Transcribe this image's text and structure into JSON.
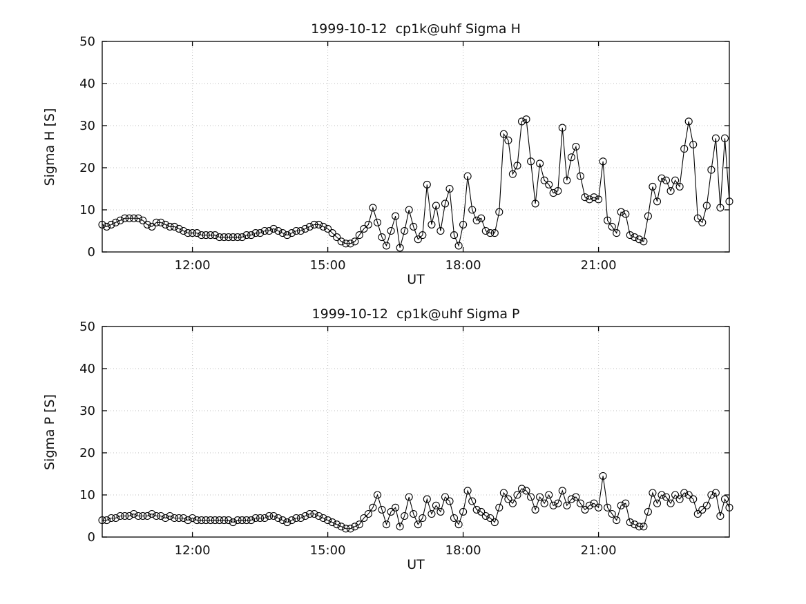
{
  "figure": {
    "background": "#ffffff"
  },
  "chart_data": [
    {
      "type": "line",
      "marker": "circle",
      "title": "1999-10-12  cp1k@uhf Sigma H",
      "xlabel": "UT",
      "ylabel": "Sigma H [S]",
      "xlim": [
        10.0,
        23.9
      ],
      "ylim": [
        0,
        50
      ],
      "xticks": {
        "values": [
          12,
          15,
          18,
          21
        ],
        "labels": [
          "12:00",
          "15:00",
          "18:00",
          "21:00"
        ]
      },
      "yticks": [
        0,
        10,
        20,
        30,
        40,
        50
      ],
      "line_color": "#000000",
      "grid_color": "#bfbfbf",
      "grid": true,
      "x_hours": {
        "start": 10.0,
        "step": 0.1,
        "count": 140
      },
      "values": [
        6.5,
        6,
        6.5,
        7,
        7.5,
        8,
        8,
        8,
        8,
        7.5,
        6.5,
        6,
        7,
        7,
        6.5,
        6,
        6,
        5.5,
        5,
        4.5,
        4.5,
        4.5,
        4,
        4,
        4,
        4,
        3.5,
        3.5,
        3.5,
        3.5,
        3.5,
        3.5,
        4,
        4,
        4.5,
        4.5,
        5,
        5,
        5.5,
        5,
        4.5,
        4,
        4.5,
        5,
        5,
        5.5,
        6,
        6.5,
        6.5,
        6,
        5.5,
        4.5,
        3.5,
        2.5,
        2,
        2,
        2.5,
        4,
        5.5,
        6.5,
        10.5,
        7,
        3.5,
        1.5,
        5,
        8.5,
        1,
        5,
        10,
        6,
        3,
        4,
        16,
        6.5,
        11,
        5,
        11.5,
        15,
        4,
        1.5,
        6.5,
        18,
        10,
        7.5,
        8,
        5,
        4.5,
        4.5,
        9.5,
        28,
        26.5,
        18.5,
        20.5,
        31,
        31.5,
        21.5,
        11.5,
        21,
        17,
        16,
        14,
        14.5,
        29.5,
        17,
        22.5,
        25,
        18,
        13,
        12.5,
        13,
        12.5,
        21.5,
        7.5,
        6,
        4.5,
        9.5,
        9,
        4,
        3.5,
        3,
        2.5,
        8.5,
        15.5,
        12,
        17.5,
        17,
        14.5,
        17,
        15.5,
        24.5,
        31,
        25.5,
        8,
        7,
        11,
        19.5,
        27,
        10.5,
        27,
        12
      ]
    },
    {
      "type": "line",
      "marker": "circle",
      "title": "1999-10-12  cp1k@uhf Sigma P",
      "xlabel": "UT",
      "ylabel": "Sigma P [S]",
      "xlim": [
        10.0,
        23.9
      ],
      "ylim": [
        0,
        50
      ],
      "xticks": {
        "values": [
          12,
          15,
          18,
          21
        ],
        "labels": [
          "12:00",
          "15:00",
          "18:00",
          "21:00"
        ]
      },
      "yticks": [
        0,
        10,
        20,
        30,
        40,
        50
      ],
      "line_color": "#000000",
      "grid_color": "#bfbfbf",
      "grid": true,
      "x_hours": {
        "start": 10.0,
        "step": 0.1,
        "count": 140
      },
      "values": [
        4,
        4,
        4.5,
        4.5,
        5,
        5,
        5,
        5.5,
        5,
        5,
        5,
        5.5,
        5,
        5,
        4.5,
        5,
        4.5,
        4.5,
        4.5,
        4,
        4.5,
        4,
        4,
        4,
        4,
        4,
        4,
        4,
        4,
        3.5,
        4,
        4,
        4,
        4,
        4.5,
        4.5,
        4.5,
        5,
        5,
        4.5,
        4,
        3.5,
        4,
        4.5,
        4.5,
        5,
        5.5,
        5.5,
        5,
        4.5,
        4,
        3.5,
        3,
        2.5,
        2,
        2,
        2.5,
        3,
        4.5,
        5.5,
        7,
        10,
        6.5,
        3,
        6,
        7,
        2.5,
        5,
        9.5,
        5.5,
        3,
        4.5,
        9,
        5.5,
        7.5,
        6,
        9.5,
        8.5,
        4.5,
        3,
        6,
        11,
        8.5,
        6.5,
        6,
        5,
        4.5,
        3.5,
        7,
        10.5,
        9,
        8,
        10,
        11.5,
        11,
        9.5,
        6.5,
        9.5,
        8,
        10,
        7.5,
        8,
        11,
        7.5,
        9,
        9.5,
        8,
        6.5,
        7.5,
        8,
        7,
        14.5,
        7,
        5.5,
        4,
        7.5,
        8,
        3.5,
        3,
        2.5,
        2.5,
        6,
        10.5,
        8,
        10,
        9.5,
        8,
        10,
        9,
        10.5,
        10,
        9,
        5.5,
        6.5,
        7.5,
        10,
        10.5,
        5,
        9,
        7
      ]
    }
  ]
}
